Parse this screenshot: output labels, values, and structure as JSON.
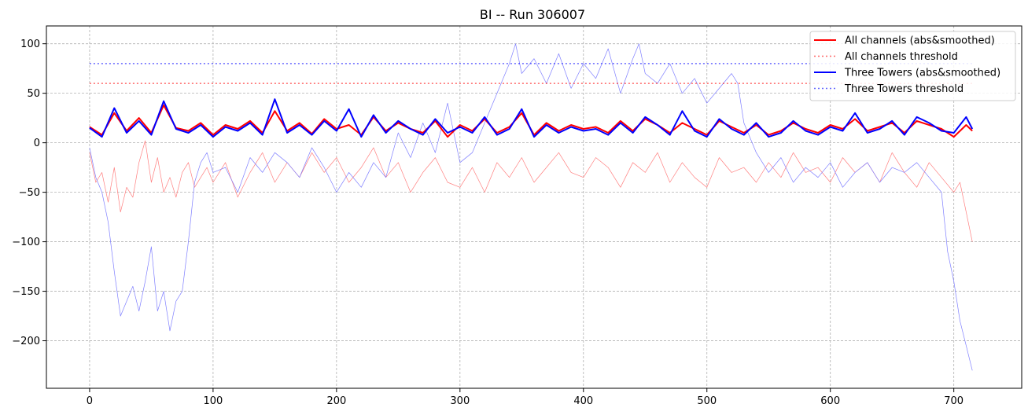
{
  "chart_data": {
    "type": "line",
    "title": "BI -- Run 306007",
    "xlabel": "",
    "ylabel": "",
    "xlim": [
      -35,
      755
    ],
    "ylim": [
      -248,
      118
    ],
    "xticks": [
      0,
      100,
      200,
      300,
      400,
      500,
      600,
      700
    ],
    "yticks": [
      100,
      50,
      0,
      -50,
      -100,
      -150,
      -200
    ],
    "xtick_labels": [
      "0",
      "100",
      "200",
      "300",
      "400",
      "500",
      "600",
      "700"
    ],
    "ytick_labels": [
      "100",
      "50",
      "0",
      "−50",
      "−100",
      "−150",
      "−200"
    ],
    "grid": true,
    "legend_position": "top-right",
    "colors": {
      "all_channels": "#ff0000",
      "three_towers": "#0000ff",
      "all_channels_raw": "#ff7f7f",
      "three_towers_raw": "#7f7fff"
    },
    "series": [
      {
        "name": "All channels (abs&smoothed)",
        "style": "solid",
        "color": "#ff0000",
        "x": [
          0,
          10,
          20,
          30,
          40,
          50,
          60,
          70,
          80,
          90,
          100,
          110,
          120,
          130,
          140,
          150,
          160,
          170,
          180,
          190,
          200,
          210,
          220,
          230,
          240,
          250,
          260,
          270,
          280,
          290,
          300,
          310,
          320,
          330,
          340,
          350,
          360,
          370,
          380,
          390,
          400,
          410,
          420,
          430,
          440,
          450,
          460,
          470,
          480,
          490,
          500,
          510,
          520,
          530,
          540,
          550,
          560,
          570,
          580,
          590,
          600,
          610,
          620,
          630,
          640,
          650,
          660,
          670,
          680,
          690,
          700,
          710,
          715
        ],
        "y": [
          16,
          8,
          30,
          12,
          25,
          10,
          38,
          15,
          12,
          20,
          8,
          18,
          14,
          22,
          10,
          32,
          12,
          20,
          9,
          24,
          14,
          18,
          8,
          26,
          12,
          20,
          14,
          10,
          22,
          6,
          18,
          12,
          24,
          10,
          16,
          30,
          8,
          20,
          12,
          18,
          14,
          16,
          10,
          22,
          12,
          24,
          18,
          10,
          20,
          14,
          8,
          22,
          16,
          10,
          18,
          8,
          12,
          20,
          14,
          10,
          18,
          14,
          24,
          12,
          16,
          20,
          10,
          22,
          18,
          14,
          6,
          18,
          12
        ]
      },
      {
        "name": "All channels threshold",
        "style": "dotted",
        "color": "#ff0000",
        "x": [
          0,
          715
        ],
        "y": [
          60,
          60
        ]
      },
      {
        "name": "Three Towers (abs&smoothed)",
        "style": "solid",
        "color": "#0000ff",
        "x": [
          0,
          10,
          20,
          30,
          40,
          50,
          60,
          70,
          80,
          90,
          100,
          110,
          120,
          130,
          140,
          150,
          160,
          170,
          180,
          190,
          200,
          210,
          220,
          230,
          240,
          250,
          260,
          270,
          280,
          290,
          300,
          310,
          320,
          330,
          340,
          350,
          360,
          370,
          380,
          390,
          400,
          410,
          420,
          430,
          440,
          450,
          460,
          470,
          480,
          490,
          500,
          510,
          520,
          530,
          540,
          550,
          560,
          570,
          580,
          590,
          600,
          610,
          620,
          630,
          640,
          650,
          660,
          670,
          680,
          690,
          700,
          710,
          715
        ],
        "y": [
          15,
          6,
          35,
          10,
          22,
          8,
          42,
          14,
          10,
          18,
          6,
          16,
          12,
          20,
          8,
          44,
          10,
          18,
          8,
          22,
          12,
          34,
          6,
          28,
          10,
          22,
          14,
          8,
          24,
          10,
          16,
          10,
          26,
          8,
          14,
          34,
          6,
          18,
          10,
          16,
          12,
          14,
          8,
          20,
          10,
          26,
          18,
          8,
          32,
          12,
          6,
          24,
          14,
          8,
          20,
          6,
          10,
          22,
          12,
          8,
          16,
          12,
          30,
          10,
          14,
          22,
          8,
          26,
          20,
          12,
          10,
          26,
          14
        ]
      },
      {
        "name": "Three Towers threshold",
        "style": "dotted",
        "color": "#0000ff",
        "x": [
          0,
          715
        ],
        "y": [
          80,
          80
        ]
      },
      {
        "name": "",
        "style": "thin",
        "color": "#ff7f7f",
        "x": [
          0,
          5,
          10,
          15,
          20,
          25,
          30,
          35,
          40,
          45,
          50,
          55,
          60,
          65,
          70,
          75,
          80,
          85,
          90,
          95,
          100,
          110,
          120,
          130,
          140,
          150,
          160,
          170,
          180,
          190,
          200,
          210,
          220,
          230,
          240,
          250,
          260,
          270,
          280,
          290,
          300,
          310,
          320,
          330,
          340,
          350,
          360,
          370,
          380,
          390,
          400,
          410,
          420,
          430,
          440,
          450,
          460,
          470,
          480,
          490,
          500,
          510,
          520,
          530,
          540,
          550,
          560,
          570,
          580,
          590,
          600,
          610,
          620,
          630,
          640,
          650,
          660,
          670,
          680,
          690,
          700,
          705,
          710,
          715
        ],
        "y": [
          -10,
          -40,
          -30,
          -60,
          -25,
          -70,
          -45,
          -55,
          -20,
          2,
          -40,
          -15,
          -50,
          -35,
          -55,
          -30,
          -20,
          -45,
          -35,
          -25,
          -40,
          -20,
          -55,
          -30,
          -10,
          -40,
          -20,
          -35,
          -10,
          -30,
          -15,
          -40,
          -25,
          -5,
          -35,
          -20,
          -50,
          -30,
          -15,
          -40,
          -45,
          -25,
          -50,
          -20,
          -35,
          -15,
          -40,
          -25,
          -10,
          -30,
          -35,
          -15,
          -25,
          -45,
          -20,
          -30,
          -10,
          -40,
          -20,
          -35,
          -45,
          -15,
          -30,
          -25,
          -40,
          -20,
          -35,
          -10,
          -30,
          -25,
          -40,
          -15,
          -30,
          -20,
          -40,
          -10,
          -30,
          -45,
          -20,
          -35,
          -50,
          -40,
          -70,
          -100
        ]
      },
      {
        "name": "",
        "style": "thin",
        "color": "#7f7fff",
        "x": [
          0,
          5,
          10,
          15,
          20,
          25,
          30,
          35,
          40,
          45,
          50,
          55,
          60,
          65,
          70,
          75,
          80,
          85,
          90,
          95,
          100,
          110,
          120,
          130,
          140,
          150,
          160,
          170,
          180,
          190,
          200,
          210,
          220,
          230,
          240,
          250,
          260,
          270,
          280,
          290,
          300,
          310,
          320,
          330,
          340,
          345,
          350,
          360,
          370,
          380,
          390,
          400,
          410,
          420,
          430,
          440,
          445,
          450,
          460,
          470,
          480,
          490,
          500,
          510,
          520,
          525,
          530,
          540,
          550,
          560,
          570,
          580,
          590,
          600,
          610,
          620,
          630,
          640,
          650,
          660,
          670,
          680,
          690,
          695,
          700,
          705,
          710,
          715
        ],
        "y": [
          -5,
          -35,
          -50,
          -80,
          -130,
          -175,
          -160,
          -145,
          -170,
          -140,
          -105,
          -170,
          -150,
          -190,
          -160,
          -150,
          -100,
          -40,
          -20,
          -10,
          -30,
          -25,
          -50,
          -15,
          -30,
          -10,
          -20,
          -35,
          -5,
          -25,
          -50,
          -30,
          -45,
          -20,
          -35,
          10,
          -15,
          20,
          -10,
          40,
          -20,
          -10,
          20,
          50,
          80,
          100,
          70,
          85,
          60,
          90,
          55,
          80,
          65,
          95,
          50,
          85,
          100,
          70,
          60,
          80,
          50,
          65,
          40,
          55,
          70,
          60,
          20,
          -10,
          -30,
          -15,
          -40,
          -25,
          -35,
          -20,
          -45,
          -30,
          -20,
          -40,
          -25,
          -30,
          -20,
          -35,
          -50,
          -110,
          -140,
          -180,
          -205,
          -230
        ]
      }
    ]
  }
}
